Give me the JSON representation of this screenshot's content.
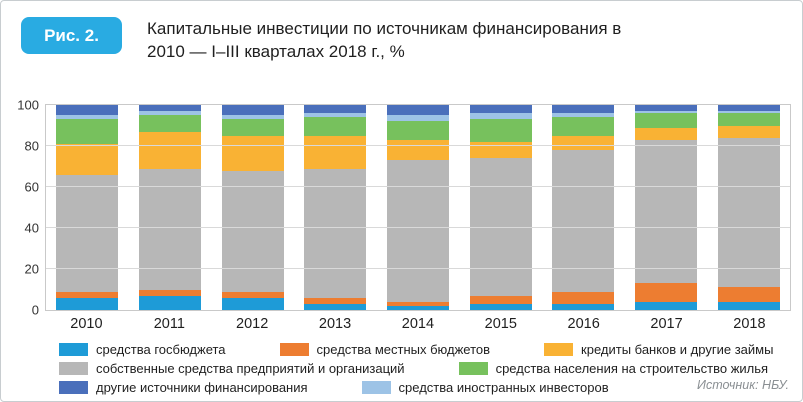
{
  "header": {
    "badge": "Рис. 2.",
    "title_line1": "Капитальные инвестиции по источникам финансирования в",
    "title_line2": "2010 — I–III кварталах 2018 г., %"
  },
  "source": "Источник: НБУ.",
  "colors": {
    "badge": "#29abe2",
    "card_border": "#c8cdd0",
    "grid": "#d9d9d9",
    "axis_text": "#333333"
  },
  "chart_data": {
    "type": "bar",
    "stacked": true,
    "title": "Капитальные инвестиции по источникам финансирования в 2010 — I–III кварталах 2018 г., %",
    "xlabel": "",
    "ylabel": "%",
    "ylim": [
      0,
      100
    ],
    "yticks": [
      0,
      20,
      40,
      60,
      80,
      100
    ],
    "grid": true,
    "legend_position": "bottom",
    "categories": [
      "2010",
      "2011",
      "2012",
      "2013",
      "2014",
      "2015",
      "2016",
      "2017",
      "2018"
    ],
    "series": [
      {
        "name": "средства госбюджета",
        "color": "#1e9bd7",
        "values": [
          6,
          7,
          6,
          3,
          2,
          3,
          3,
          4,
          4
        ]
      },
      {
        "name": "средства местных бюджетов",
        "color": "#ed7d31",
        "values": [
          3,
          3,
          3,
          3,
          2,
          4,
          6,
          9,
          7
        ]
      },
      {
        "name": "собственные средства предприятий и организаций",
        "color": "#b7b7b7",
        "values": [
          57,
          59,
          59,
          63,
          69,
          67,
          69,
          70,
          73
        ]
      },
      {
        "name": "кредиты банков и другие займы",
        "color": "#f9b234",
        "values": [
          15,
          18,
          17,
          16,
          10,
          8,
          7,
          6,
          6
        ]
      },
      {
        "name": "средства населения на строительство жилья",
        "color": "#77c15d",
        "values": [
          12,
          8,
          8,
          9,
          9,
          11,
          9,
          7,
          6
        ]
      },
      {
        "name": "средства иностранных инвесторов",
        "color": "#9dc3e6",
        "values": [
          2,
          2,
          2,
          2,
          3,
          3,
          2,
          1,
          1
        ]
      },
      {
        "name": "другие источники финансирования",
        "color": "#4a6fbb",
        "values": [
          5,
          3,
          5,
          4,
          5,
          4,
          4,
          3,
          3
        ]
      }
    ],
    "legend_rows": [
      [
        0,
        1,
        3
      ],
      [
        2,
        4
      ],
      [
        6,
        5
      ]
    ]
  }
}
